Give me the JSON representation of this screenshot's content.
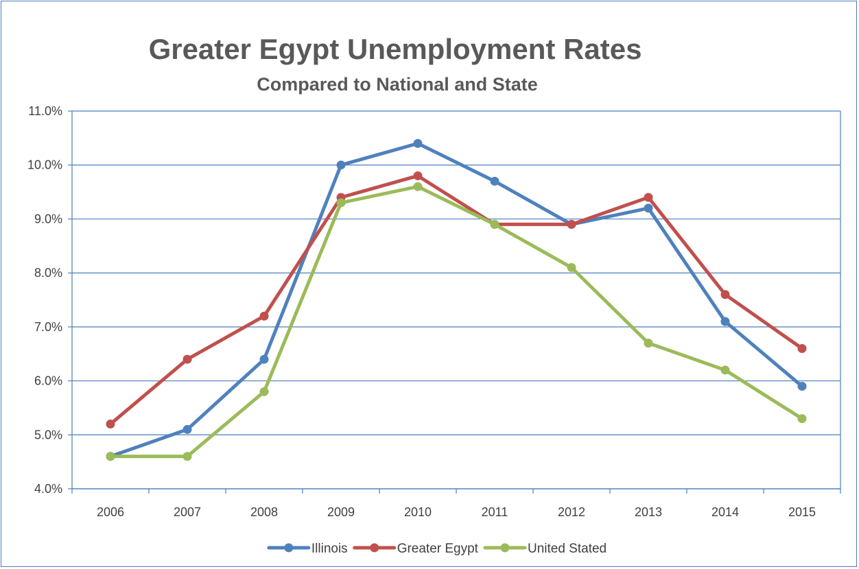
{
  "chart_data": {
    "type": "line",
    "title": "Greater Egypt Unemployment Rates",
    "subtitle": "Compared to National and State",
    "xlabel": "",
    "ylabel": "",
    "categories": [
      "2006",
      "2007",
      "2008",
      "2009",
      "2010",
      "2011",
      "2012",
      "2013",
      "2014",
      "2015"
    ],
    "ylim": [
      4.0,
      11.0
    ],
    "yticks": [
      4.0,
      5.0,
      6.0,
      7.0,
      8.0,
      9.0,
      10.0,
      11.0
    ],
    "ytick_labels": [
      "4.0%",
      "5.0%",
      "6.0%",
      "7.0%",
      "8.0%",
      "9.0%",
      "10.0%",
      "11.0%"
    ],
    "grid": "horizontal",
    "legend_position": "bottom",
    "series": [
      {
        "name": "Illinois",
        "color": "#4f81bd",
        "values": [
          4.6,
          5.1,
          6.4,
          10.0,
          10.4,
          9.7,
          8.9,
          9.2,
          7.1,
          5.9
        ]
      },
      {
        "name": "Greater Egypt",
        "color": "#c0504d",
        "values": [
          5.2,
          6.4,
          7.2,
          9.4,
          9.8,
          8.9,
          8.9,
          9.4,
          7.6,
          6.6
        ]
      },
      {
        "name": "United Stated",
        "color": "#9bbb59",
        "values": [
          4.6,
          4.6,
          5.8,
          9.3,
          9.6,
          8.9,
          8.1,
          6.7,
          6.2,
          5.3
        ]
      }
    ]
  }
}
